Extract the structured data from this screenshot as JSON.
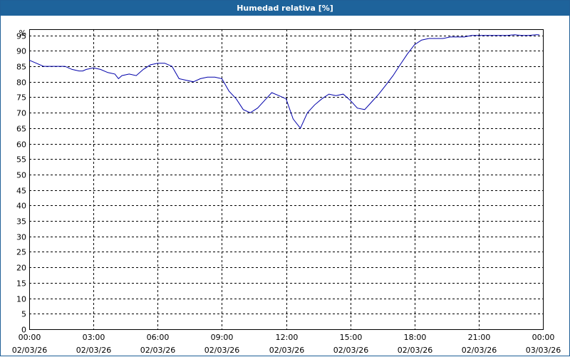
{
  "window": {
    "title": "Humedad relativa [%]"
  },
  "colors": {
    "titlebar": "#1e639b",
    "series": "#0000aa",
    "grid": "#000000"
  },
  "chart_data": {
    "type": "line",
    "title": "Humedad relativa [%]",
    "ylabel": "%",
    "xlabel": "",
    "ylim": [
      0,
      97
    ],
    "yticks": [
      0,
      5,
      10,
      15,
      20,
      25,
      30,
      35,
      40,
      45,
      50,
      55,
      60,
      65,
      70,
      75,
      80,
      85,
      90,
      95
    ],
    "grid": true,
    "xticks": [
      {
        "time": "00:00",
        "date": "02/03/26"
      },
      {
        "time": "03:00",
        "date": "02/03/26"
      },
      {
        "time": "06:00",
        "date": "02/03/26"
      },
      {
        "time": "09:00",
        "date": "02/03/26"
      },
      {
        "time": "12:00",
        "date": "02/03/26"
      },
      {
        "time": "15:00",
        "date": "02/03/26"
      },
      {
        "time": "18:00",
        "date": "02/03/26"
      },
      {
        "time": "21:00",
        "date": "02/03/26"
      },
      {
        "time": "00:00",
        "date": "03/03/26"
      }
    ],
    "x_unit": "hours",
    "series": [
      {
        "x": [
          0,
          0.33,
          0.67,
          1,
          1.33,
          1.67,
          2,
          2.33,
          2.5,
          2.67,
          3,
          3.33,
          3.67,
          4,
          4.17,
          4.33,
          4.67,
          5,
          5.33,
          5.67,
          6,
          6.33,
          6.67,
          7,
          7.33,
          7.67,
          8,
          8.33,
          8.67,
          9,
          9.33,
          9.67,
          10,
          10.33,
          10.67,
          11,
          11.33,
          11.67,
          12,
          12.33,
          12.67,
          13,
          13.33,
          13.67,
          14,
          14.33,
          14.67,
          15,
          15.33,
          15.67,
          16,
          16.33,
          16.67,
          17,
          17.33,
          17.67,
          18,
          18.33,
          18.67,
          19,
          19.33,
          19.67,
          20,
          20.33,
          20.67,
          21,
          21.33,
          21.67,
          22,
          22.33,
          22.67,
          23,
          23.33,
          23.67,
          23.83
        ],
        "y": [
          87,
          86,
          85,
          85,
          85,
          85,
          84,
          83.5,
          83.5,
          84,
          84.5,
          84,
          83,
          82.5,
          81,
          82,
          82.5,
          82,
          84,
          85.5,
          86,
          86,
          85,
          81,
          80.5,
          80,
          81,
          81.5,
          81.5,
          81,
          77,
          74.5,
          71,
          70,
          71.5,
          74,
          76.5,
          75.5,
          74.5,
          68,
          65,
          70,
          72.5,
          74.5,
          76,
          75.5,
          76,
          74,
          71.5,
          71,
          73.5,
          76,
          79,
          82,
          85.5,
          89,
          92,
          93.5,
          94,
          94,
          94,
          94.5,
          94.5,
          94.5,
          95,
          95,
          95,
          95,
          95,
          95,
          95.2,
          95,
          95,
          95.2,
          95.2
        ]
      }
    ]
  }
}
